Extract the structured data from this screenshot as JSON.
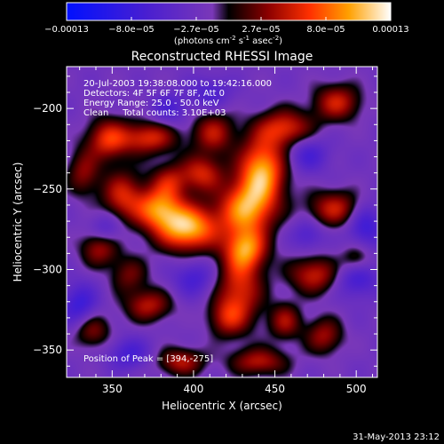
{
  "chart_data": {
    "type": "heatmap",
    "title": "Reconstructed RHESSI Image",
    "xlabel": "Heliocentric X (arcsec)",
    "ylabel": "Heliocentric Y (arcsec)",
    "xlim": [
      322,
      513
    ],
    "ylim": [
      -367,
      -174
    ],
    "x_ticks": [
      350,
      400,
      450,
      500
    ],
    "y_ticks": [
      -200,
      -250,
      -300,
      -350
    ],
    "colorbar": {
      "range": [
        -0.00013,
        0.00013
      ],
      "tick_labels": [
        "-0.00013",
        "-8.0e-05",
        "-2.7e-05",
        "2.7e-05",
        "8.0e-05",
        "0.00013"
      ],
      "label": "(photons cm",
      "label_sup1": "-2",
      "label_mid": " s",
      "label_sup2": "-1",
      "label_end": " asec",
      "label_sup3": "-2",
      "label_close": ")"
    },
    "info_lines": [
      "20-Jul-2003 19:38:08.000 to 19:42:16.000",
      "Detectors: 4F 5F 6F 7F 8F, Att 0",
      "Energy Range: 25.0 - 50.0 keV",
      "Clean     Total counts: 3.10E+03"
    ],
    "peak_label": "Position of Peak = [394,-275]",
    "peak": [
      394,
      -275
    ],
    "blobs": [
      {
        "x": 396,
        "y": -274,
        "a": 1.0,
        "sx": 13,
        "sy": 10
      },
      {
        "x": 442,
        "y": -238,
        "a": 0.92,
        "sx": 10,
        "sy": 14
      },
      {
        "x": 432,
        "y": -262,
        "a": 0.85,
        "sx": 12,
        "sy": 12
      },
      {
        "x": 432,
        "y": -287,
        "a": 0.72,
        "sx": 9,
        "sy": 9
      },
      {
        "x": 428,
        "y": -312,
        "a": 0.6,
        "sx": 10,
        "sy": 16
      },
      {
        "x": 378,
        "y": -262,
        "a": 0.75,
        "sx": 10,
        "sy": 9
      },
      {
        "x": 356,
        "y": -254,
        "a": 0.55,
        "sx": 9,
        "sy": 11
      },
      {
        "x": 372,
        "y": -218,
        "a": 0.6,
        "sx": 12,
        "sy": 7
      },
      {
        "x": 347,
        "y": -219,
        "a": 0.6,
        "sx": 9,
        "sy": 9
      },
      {
        "x": 412,
        "y": -215,
        "a": 0.5,
        "sx": 9,
        "sy": 9
      },
      {
        "x": 456,
        "y": -212,
        "a": 0.6,
        "sx": 12,
        "sy": 8
      },
      {
        "x": 488,
        "y": -196,
        "a": 0.55,
        "sx": 10,
        "sy": 8
      },
      {
        "x": 487,
        "y": -262,
        "a": 0.55,
        "sx": 12,
        "sy": 8
      },
      {
        "x": 474,
        "y": -303,
        "a": 0.55,
        "sx": 11,
        "sy": 8
      },
      {
        "x": 500,
        "y": -294,
        "a": 0.5,
        "sx": 7,
        "sy": 7
      },
      {
        "x": 342,
        "y": -286,
        "a": 0.5,
        "sx": 8,
        "sy": 8
      },
      {
        "x": 337,
        "y": -337,
        "a": 0.45,
        "sx": 8,
        "sy": 8
      },
      {
        "x": 372,
        "y": -322,
        "a": 0.5,
        "sx": 10,
        "sy": 7
      },
      {
        "x": 392,
        "y": -357,
        "a": 0.5,
        "sx": 10,
        "sy": 6
      },
      {
        "x": 440,
        "y": -357,
        "a": 0.5,
        "sx": 12,
        "sy": 6
      },
      {
        "x": 480,
        "y": -341,
        "a": 0.45,
        "sx": 8,
        "sy": 8
      },
      {
        "x": 456,
        "y": -332,
        "a": 0.45,
        "sx": 7,
        "sy": 8
      },
      {
        "x": 405,
        "y": -240,
        "a": 0.55,
        "sx": 9,
        "sy": 8
      },
      {
        "x": 385,
        "y": -245,
        "a": 0.45,
        "sx": 8,
        "sy": 8
      },
      {
        "x": 332,
        "y": -240,
        "a": 0.4,
        "sx": 7,
        "sy": 10
      },
      {
        "x": 420,
        "y": -330,
        "a": 0.4,
        "sx": 8,
        "sy": 8
      },
      {
        "x": 360,
        "y": -303,
        "a": 0.35,
        "sx": 8,
        "sy": 8
      }
    ],
    "neg_blobs": [
      {
        "x": 500,
        "y": -303,
        "a": 0.5,
        "sx": 9,
        "sy": 9
      },
      {
        "x": 505,
        "y": -272,
        "a": 0.45,
        "sx": 8,
        "sy": 10
      },
      {
        "x": 330,
        "y": -323,
        "a": 0.45,
        "sx": 8,
        "sy": 10
      },
      {
        "x": 346,
        "y": -275,
        "a": 0.35,
        "sx": 7,
        "sy": 7
      },
      {
        "x": 400,
        "y": -305,
        "a": 0.35,
        "sx": 9,
        "sy": 8
      },
      {
        "x": 360,
        "y": -352,
        "a": 0.35,
        "sx": 9,
        "sy": 7
      },
      {
        "x": 470,
        "y": -228,
        "a": 0.35,
        "sx": 9,
        "sy": 8
      },
      {
        "x": 410,
        "y": -190,
        "a": 0.3,
        "sx": 9,
        "sy": 7
      },
      {
        "x": 470,
        "y": -278,
        "a": 0.3,
        "sx": 7,
        "sy": 7
      },
      {
        "x": 385,
        "y": -200,
        "a": 0.3,
        "sx": 8,
        "sy": 7
      }
    ]
  },
  "footer": {
    "date": "31-May-2013 23:12"
  }
}
